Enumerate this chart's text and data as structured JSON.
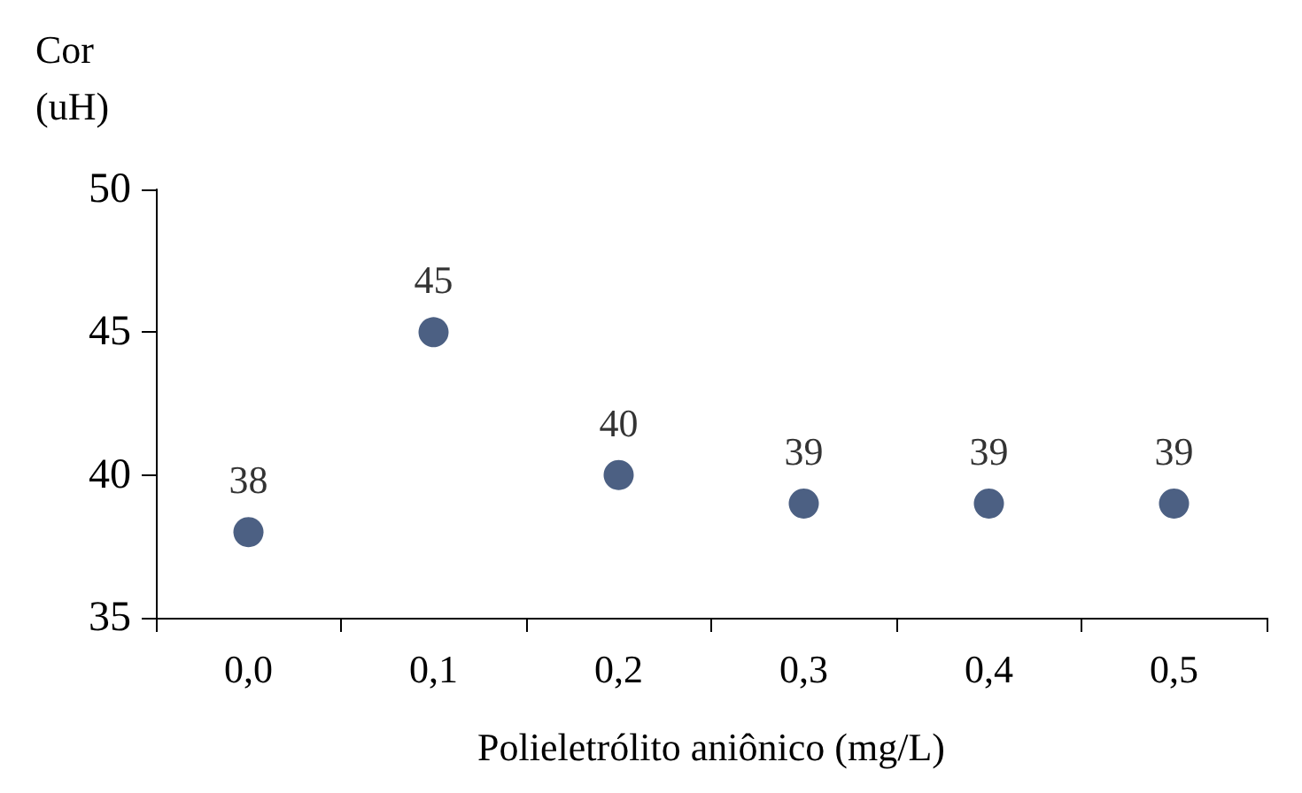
{
  "chart_data": {
    "type": "scatter",
    "xlabel": "Polieletrólito aniônico (mg/L)",
    "ylabel": "Cor\n(uH)",
    "categories": [
      "0,0",
      "0,1",
      "0,2",
      "0,3",
      "0,4",
      "0,5"
    ],
    "values": [
      38,
      45,
      40,
      39,
      39,
      39
    ],
    "color": "#1f3864",
    "marker": "circle",
    "data_labels": true,
    "ylim": [
      35,
      50
    ],
    "yticks": [
      35,
      40,
      45,
      50
    ]
  }
}
